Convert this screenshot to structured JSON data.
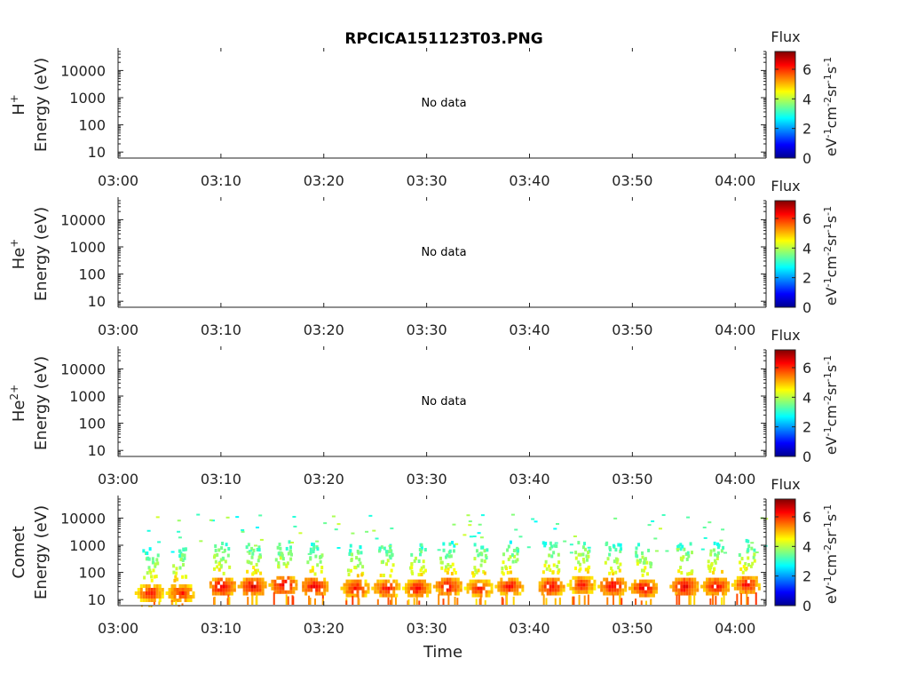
{
  "title": "RPCICA151123T03.PNG",
  "xlabel": "Time",
  "nodata_text": "No data",
  "colorbar": {
    "label": "Flux",
    "units": "eV-1cm-2sr-1s-1",
    "range": [
      0,
      7.2
    ],
    "ticks": [
      "0",
      "2",
      "4",
      "6"
    ],
    "colormap": [
      "#00008f",
      "#0000ff",
      "#0080ff",
      "#00ffff",
      "#80ff80",
      "#ffff00",
      "#ff8000",
      "#ff0000",
      "#800000"
    ]
  },
  "chart_data": [
    {
      "type": "heatmap",
      "species": "H",
      "charge": "+",
      "ylabel": "Energy (eV)",
      "yscale": "log",
      "yticks": [
        "10",
        "100",
        "1000",
        "10000"
      ],
      "xticks": [
        "03:00",
        "03:10",
        "03:20",
        "03:30",
        "03:40",
        "03:50",
        "04:00"
      ],
      "xlim": [
        "03:00",
        "04:03"
      ],
      "has_data": false,
      "message": "No data"
    },
    {
      "type": "heatmap",
      "species": "He",
      "charge": "+",
      "ylabel": "Energy (eV)",
      "yscale": "log",
      "yticks": [
        "10",
        "100",
        "1000",
        "10000"
      ],
      "xticks": [
        "03:00",
        "03:10",
        "03:20",
        "03:30",
        "03:40",
        "03:50",
        "04:00"
      ],
      "xlim": [
        "03:00",
        "04:03"
      ],
      "has_data": false,
      "message": "No data"
    },
    {
      "type": "heatmap",
      "species": "He",
      "charge": "2+",
      "ylabel": "Energy (eV)",
      "yscale": "log",
      "yticks": [
        "10",
        "100",
        "1000",
        "10000"
      ],
      "xticks": [
        "03:00",
        "03:10",
        "03:20",
        "03:30",
        "03:40",
        "03:50",
        "04:00"
      ],
      "xlim": [
        "03:00",
        "04:03"
      ],
      "has_data": false,
      "message": "No data"
    },
    {
      "type": "heatmap",
      "species": "Comet",
      "charge": "",
      "ylabel": "Energy (eV)",
      "yscale": "log",
      "yticks": [
        "10",
        "100",
        "1000",
        "10000"
      ],
      "xticks": [
        "03:00",
        "03:10",
        "03:20",
        "03:30",
        "03:40",
        "03:50",
        "04:00"
      ],
      "xlim": [
        "03:00",
        "04:03"
      ],
      "has_data": true,
      "bursts": [
        {
          "time": "03:03",
          "peak_energy_eV": 20,
          "flux": 6.5
        },
        {
          "time": "03:06",
          "peak_energy_eV": 20,
          "flux": 6.5
        },
        {
          "time": "03:10",
          "peak_energy_eV": 35,
          "flux": 6.8
        },
        {
          "time": "03:13",
          "peak_energy_eV": 35,
          "flux": 6.8
        },
        {
          "time": "03:16",
          "peak_energy_eV": 40,
          "flux": 6.8
        },
        {
          "time": "03:19",
          "peak_energy_eV": 35,
          "flux": 6.8
        },
        {
          "time": "03:23",
          "peak_energy_eV": 30,
          "flux": 6.6
        },
        {
          "time": "03:26",
          "peak_energy_eV": 30,
          "flux": 6.6
        },
        {
          "time": "03:29",
          "peak_energy_eV": 30,
          "flux": 6.6
        },
        {
          "time": "03:32",
          "peak_energy_eV": 35,
          "flux": 6.7
        },
        {
          "time": "03:35",
          "peak_energy_eV": 30,
          "flux": 6.5
        },
        {
          "time": "03:38",
          "peak_energy_eV": 35,
          "flux": 6.6
        },
        {
          "time": "03:42",
          "peak_energy_eV": 35,
          "flux": 6.7
        },
        {
          "time": "03:45",
          "peak_energy_eV": 40,
          "flux": 6.5
        },
        {
          "time": "03:48",
          "peak_energy_eV": 35,
          "flux": 6.8
        },
        {
          "time": "03:51",
          "peak_energy_eV": 30,
          "flux": 6.8
        },
        {
          "time": "03:55",
          "peak_energy_eV": 35,
          "flux": 6.8
        },
        {
          "time": "03:58",
          "peak_energy_eV": 35,
          "flux": 6.7
        },
        {
          "time": "04:01",
          "peak_energy_eV": 40,
          "flux": 6.6
        }
      ]
    }
  ]
}
